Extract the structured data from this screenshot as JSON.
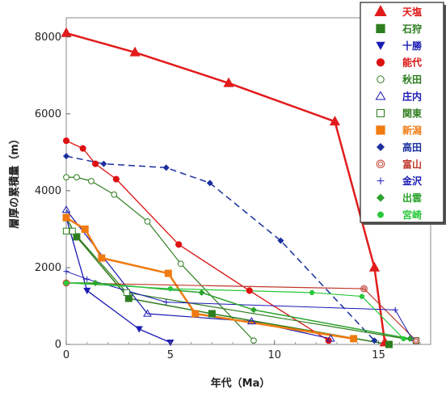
{
  "chart_data": {
    "type": "line",
    "xlabel": "年代（Ma）",
    "ylabel": "層厚の累積量（m）",
    "xlim": [
      0,
      17.5
    ],
    "ylim": [
      0,
      8500
    ],
    "x_ticks": [
      "0",
      "5",
      "10",
      "15"
    ],
    "y_ticks": [
      "0",
      "2000",
      "4000",
      "6000",
      "8000"
    ],
    "legend_position": "top-right",
    "series": [
      {
        "name": "天塩",
        "color": "#e11b1b",
        "marker": "triangle-filled",
        "dash": false,
        "width": 2.5,
        "x": [
          0,
          3.3,
          7.8,
          12.9,
          14.8,
          15.3
        ],
        "y": [
          8100,
          7600,
          6800,
          5800,
          2000,
          50
        ]
      },
      {
        "name": "石狩",
        "color": "#2e7d1e",
        "marker": "square-filled",
        "dash": false,
        "width": 1.5,
        "x": [
          0,
          0.5,
          3.0,
          7.0,
          15.5
        ],
        "y": [
          3300,
          2800,
          1200,
          800,
          0
        ]
      },
      {
        "name": "十勝",
        "color": "#1a1ab5",
        "marker": "triangle-down-filled",
        "dash": false,
        "width": 1.3,
        "x": [
          0,
          1.0,
          3.5,
          5.0
        ],
        "y": [
          3300,
          1400,
          400,
          50
        ]
      },
      {
        "name": "能代",
        "color": "#dd1111",
        "marker": "circle-filled",
        "dash": false,
        "width": 1.3,
        "x": [
          0,
          0.8,
          1.4,
          2.4,
          5.4,
          8.8,
          12.6
        ],
        "y": [
          5300,
          5100,
          4700,
          4300,
          2600,
          1400,
          100
        ]
      },
      {
        "name": "秋田",
        "color": "#2e7d1e",
        "marker": "circle-open",
        "dash": false,
        "width": 1.2,
        "x": [
          0,
          0.5,
          1.2,
          2.3,
          3.9,
          5.5,
          9.0
        ],
        "y": [
          4350,
          4350,
          4250,
          3900,
          3200,
          2100,
          100
        ]
      },
      {
        "name": "庄内",
        "color": "#1a1ab5",
        "marker": "triangle-open",
        "dash": false,
        "width": 1.2,
        "x": [
          0,
          3.9,
          8.9,
          12.7
        ],
        "y": [
          3500,
          800,
          600,
          150
        ]
      },
      {
        "name": "関東",
        "color": "#2e7d1e",
        "marker": "square-open",
        "dash": false,
        "width": 1.2,
        "x": [
          0,
          0.3,
          2.9,
          16.8
        ],
        "y": [
          2950,
          2950,
          1350,
          100
        ]
      },
      {
        "name": "新潟",
        "color": "#f07a10",
        "marker": "square-filled",
        "dash": false,
        "width": 2.5,
        "x": [
          0,
          0.9,
          1.7,
          4.9,
          6.2,
          13.8
        ],
        "y": [
          3300,
          3000,
          2250,
          1850,
          800,
          150
        ]
      },
      {
        "name": "高田",
        "color": "#1a2f9e",
        "marker": "diamond-filled",
        "dash": true,
        "width": 1.5,
        "x": [
          0,
          1.8,
          4.8,
          6.9,
          10.3,
          14.8
        ],
        "y": [
          4900,
          4700,
          4600,
          4200,
          2700,
          100
        ]
      },
      {
        "name": "富山",
        "color": "#c0392b",
        "marker": "circle-double",
        "dash": false,
        "width": 1.2,
        "x": [
          0,
          14.3,
          16.8
        ],
        "y": [
          1600,
          1450,
          100
        ]
      },
      {
        "name": "金沢",
        "color": "#1a1ab5",
        "marker": "plus",
        "dash": false,
        "width": 1.0,
        "x": [
          0,
          1.0,
          4.8,
          15.8,
          16.6
        ],
        "y": [
          1900,
          1700,
          1100,
          900,
          150
        ]
      },
      {
        "name": "出雲",
        "color": "#2aa32a",
        "marker": "diamond-filled",
        "dash": false,
        "width": 1.5,
        "x": [
          0,
          1.4,
          6.5,
          9.0,
          16.5
        ],
        "y": [
          1600,
          1600,
          1350,
          900,
          150
        ]
      },
      {
        "name": "宮崎",
        "color": "#28c83a",
        "marker": "circle-filled-small",
        "dash": false,
        "width": 1.2,
        "x": [
          0,
          5.0,
          11.8,
          14.2,
          16.2
        ],
        "y": [
          1600,
          1450,
          1350,
          1250,
          150
        ]
      }
    ]
  }
}
